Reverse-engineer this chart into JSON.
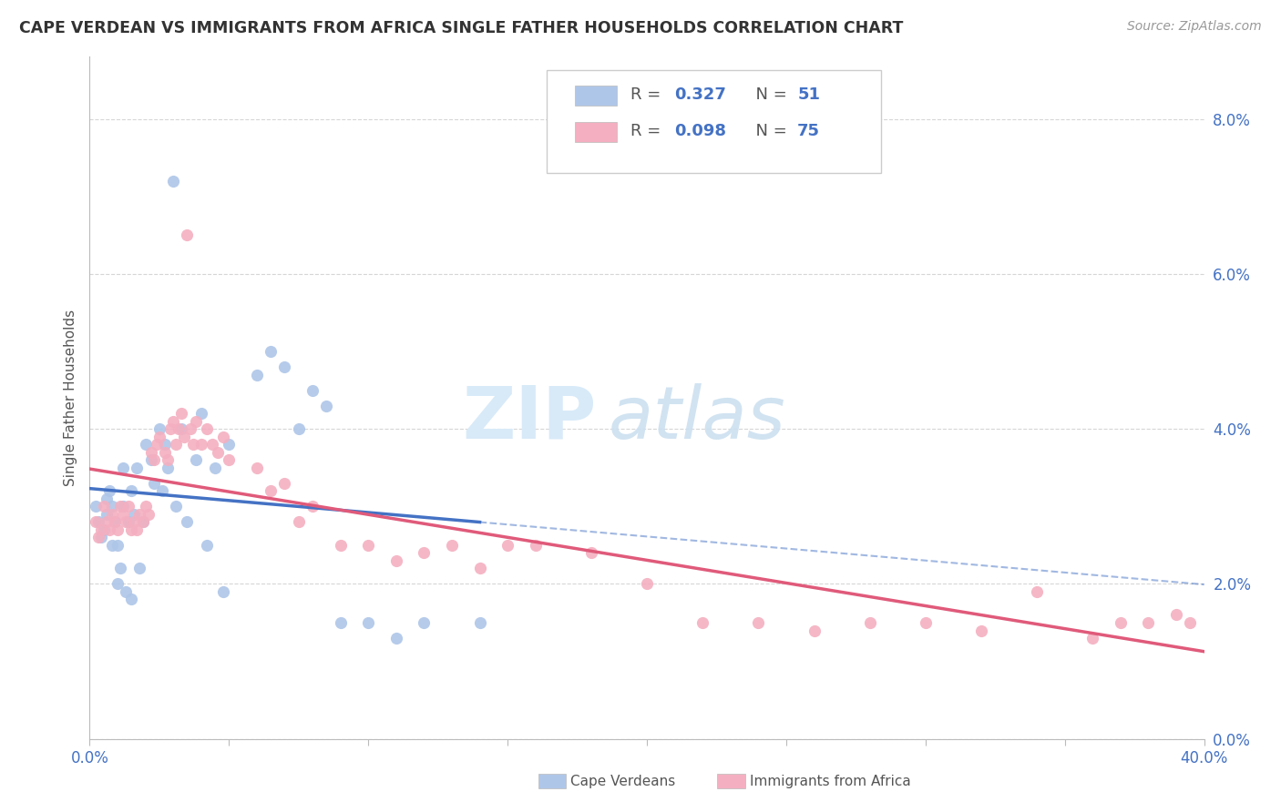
{
  "title": "CAPE VERDEAN VS IMMIGRANTS FROM AFRICA SINGLE FATHER HOUSEHOLDS CORRELATION CHART",
  "source": "Source: ZipAtlas.com",
  "ylabel_label": "Single Father Households",
  "xlim": [
    0.0,
    0.4
  ],
  "ylim": [
    0.0,
    0.088
  ],
  "xticks": [
    0.0,
    0.05,
    0.1,
    0.15,
    0.2,
    0.25,
    0.3,
    0.35,
    0.4
  ],
  "yticks": [
    0.0,
    0.02,
    0.04,
    0.06,
    0.08
  ],
  "legend_r1": "0.327",
  "legend_n1": "51",
  "legend_r2": "0.098",
  "legend_n2": "75",
  "color_blue_fill": "#aec6e8",
  "color_pink_fill": "#f4afc0",
  "color_blue_line": "#4472c4",
  "color_pink_line": "#e05a7a",
  "color_blue_text": "#4472c4",
  "color_axis_text": "#4472c4",
  "color_grid": "#cccccc",
  "color_title": "#333333",
  "color_source": "#999999",
  "color_ylabel": "#555555",
  "color_legend_text": "#333333",
  "color_bottom_legend": "#555555",
  "watermark_zip_color": "#d8eaf8",
  "watermark_atlas_color": "#cce0f0"
}
